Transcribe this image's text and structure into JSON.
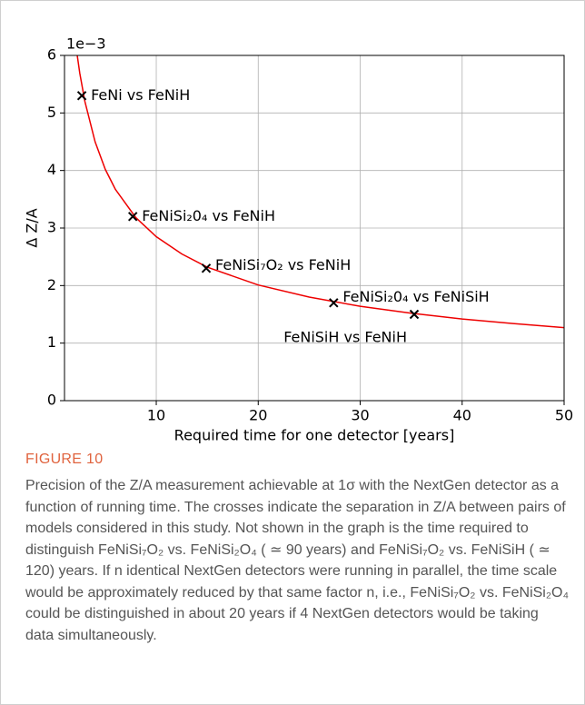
{
  "chart_data": {
    "type": "line",
    "y_offset_label": "1e−3",
    "x_label": "Required time for one detector [years]",
    "y_label": "Δ Z/A",
    "xlim": [
      1,
      50
    ],
    "xticks": [
      10,
      20,
      30,
      40,
      50
    ],
    "ylim": [
      0,
      6
    ],
    "yticks": [
      0,
      1,
      2,
      3,
      4,
      5,
      6
    ],
    "grid": true,
    "curve": {
      "color": "#ee0000",
      "x": [
        2.25,
        2.5,
        3,
        4,
        5,
        6,
        8,
        10,
        12.5,
        15,
        20,
        25,
        30,
        35,
        40,
        45,
        50
      ],
      "values": [
        6.0,
        5.69,
        5.2,
        4.5,
        4.02,
        3.67,
        3.18,
        2.85,
        2.55,
        2.32,
        2.01,
        1.8,
        1.64,
        1.52,
        1.42,
        1.34,
        1.27
      ]
    },
    "points": {
      "color": "#000000",
      "x": [
        2.7,
        7.7,
        14.9,
        27.4,
        35.3
      ],
      "values": [
        5.3,
        3.2,
        2.3,
        1.7,
        1.5
      ],
      "labels": [
        "FeNi vs FeNiH",
        "FeNiSi₂0₄ vs FeNiH",
        "FeNiSi₇O₂ vs FeNiH",
        "FeNiSi₂0₄ vs FeNiSiH",
        "FeNiSiH vs FeNiH"
      ]
    }
  },
  "caption": {
    "label": "FIGURE 10",
    "text": "Precision of the Z/A measurement achievable at 1σ with the NextGen detector as a function of running time. The crosses indicate the separation in Z/A between pairs of models considered in this study. Not shown in the graph is the time required to distinguish FeNiSi₇O₂ vs. FeNiSi₂O₄ ( ≃ 90 years) and FeNiSi₇O₂ vs. FeNiSiH ( ≃ 120) years. If n identical NextGen detectors were running in parallel, the time scale would be approximately reduced by that same factor n, i.e., FeNiSi₇O₂ vs. FeNiSi₂O₄ could be distinguished in about 20 years if 4 NextGen detectors would be taking data simultaneously."
  }
}
